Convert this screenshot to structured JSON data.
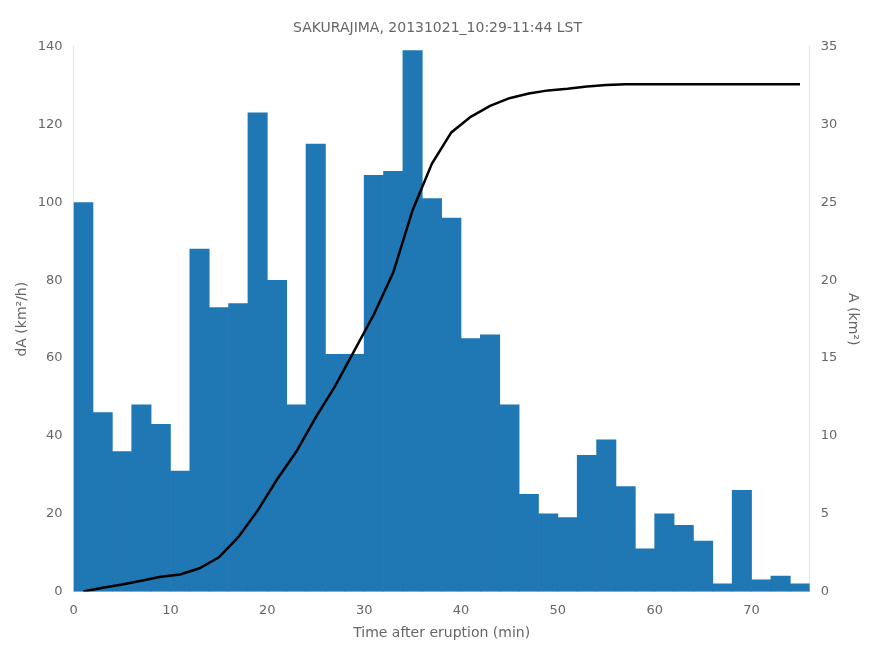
{
  "chart_data": {
    "type": "bar",
    "title": "SAKURAJIMA, 20131021_10:29-11:44 LST",
    "xlabel": "Time after eruption (min)",
    "ylabel": "dA (km²/h)",
    "y2label": "A (km²)",
    "x": [
      1,
      3,
      5,
      7,
      9,
      11,
      13,
      15,
      17,
      19,
      21,
      23,
      25,
      27,
      29,
      31,
      33,
      35,
      37,
      39,
      41,
      43,
      45,
      47,
      49,
      51,
      53,
      55,
      57,
      59,
      61,
      63,
      65,
      67,
      69,
      71,
      73,
      75
    ],
    "series": [
      {
        "type": "bar",
        "color": "#1f77b4",
        "values": [
          100,
          46,
          36,
          48,
          43,
          31,
          88,
          73,
          74,
          123,
          80,
          48,
          115,
          61,
          61,
          107,
          108,
          139,
          101,
          96,
          65,
          66,
          48,
          25,
          20,
          19,
          35,
          39,
          27,
          11,
          20,
          17,
          13,
          2,
          26,
          3,
          4,
          2
        ]
      },
      {
        "type": "line",
        "color": "#000000",
        "axis": "y2",
        "values": [
          0.0,
          0.25,
          0.45,
          0.7,
          0.95,
          1.1,
          1.5,
          2.2,
          3.5,
          5.2,
          7.2,
          9.0,
          11.2,
          13.2,
          15.5,
          17.8,
          20.5,
          24.5,
          27.5,
          29.5,
          30.5,
          31.2,
          31.7,
          32.0,
          32.2,
          32.3,
          32.45,
          32.55,
          32.6,
          32.6,
          32.6,
          32.6,
          32.6,
          32.6,
          32.6,
          32.6,
          32.6,
          32.6
        ]
      }
    ],
    "xlim": [
      0,
      76
    ],
    "xticks": [
      0,
      10,
      20,
      30,
      40,
      50,
      60,
      70
    ],
    "ylim": [
      0,
      140
    ],
    "yticks": [
      0,
      20,
      40,
      60,
      80,
      100,
      120,
      140
    ],
    "y2lim": [
      0,
      35
    ],
    "y2ticks": [
      0,
      5,
      10,
      15,
      20,
      25,
      30,
      35
    ],
    "grid": false
  }
}
